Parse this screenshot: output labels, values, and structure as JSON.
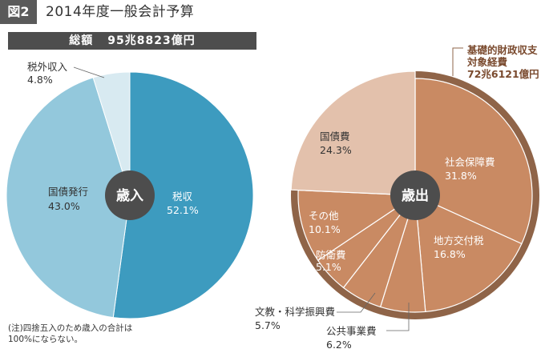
{
  "header": {
    "figure_label": "図2",
    "title": "2014年度一般会計予算"
  },
  "total": {
    "label": "総額",
    "value": "95兆8823億円"
  },
  "note": {
    "line1": "(注)四捨五入のため歳入の合計は",
    "line2": "100%にならない。"
  },
  "colors": {
    "revenue_tax": "#3d9bbf",
    "revenue_bonds": "#93c8dc",
    "revenue_other": "#d8eaf1",
    "expense_ring": "#8f6448",
    "expense_slice": "#c98a63",
    "expense_bonds": "#e3c1ac",
    "center": "#4d4d4d"
  },
  "chart_data": [
    {
      "type": "pie",
      "title": "歳入",
      "series": [
        {
          "name": "税収",
          "value": 52.1,
          "label": "52.1%"
        },
        {
          "name": "国債発行",
          "value": 43.0,
          "label": "43.0%"
        },
        {
          "name": "税外収入",
          "value": 4.8,
          "label": "4.8%"
        }
      ]
    },
    {
      "type": "pie",
      "title": "歳出",
      "series": [
        {
          "name": "社会保障費",
          "value": 31.8,
          "label": "31.8%"
        },
        {
          "name": "地方交付税",
          "value": 16.8,
          "label": "16.8%"
        },
        {
          "name": "公共事業費",
          "value": 6.2,
          "label": "6.2%"
        },
        {
          "name": "文教・科学振興費",
          "value": 5.7,
          "label": "5.7%"
        },
        {
          "name": "防衛費",
          "value": 5.1,
          "label": "5.1%"
        },
        {
          "name": "その他",
          "value": 10.1,
          "label": "10.1%"
        },
        {
          "name": "国債費",
          "value": 24.3,
          "label": "24.3%"
        }
      ],
      "ring_annotation": {
        "line1": "基礎的財政収支",
        "line2": "対象経費",
        "line3": "72兆6121億円"
      }
    }
  ]
}
